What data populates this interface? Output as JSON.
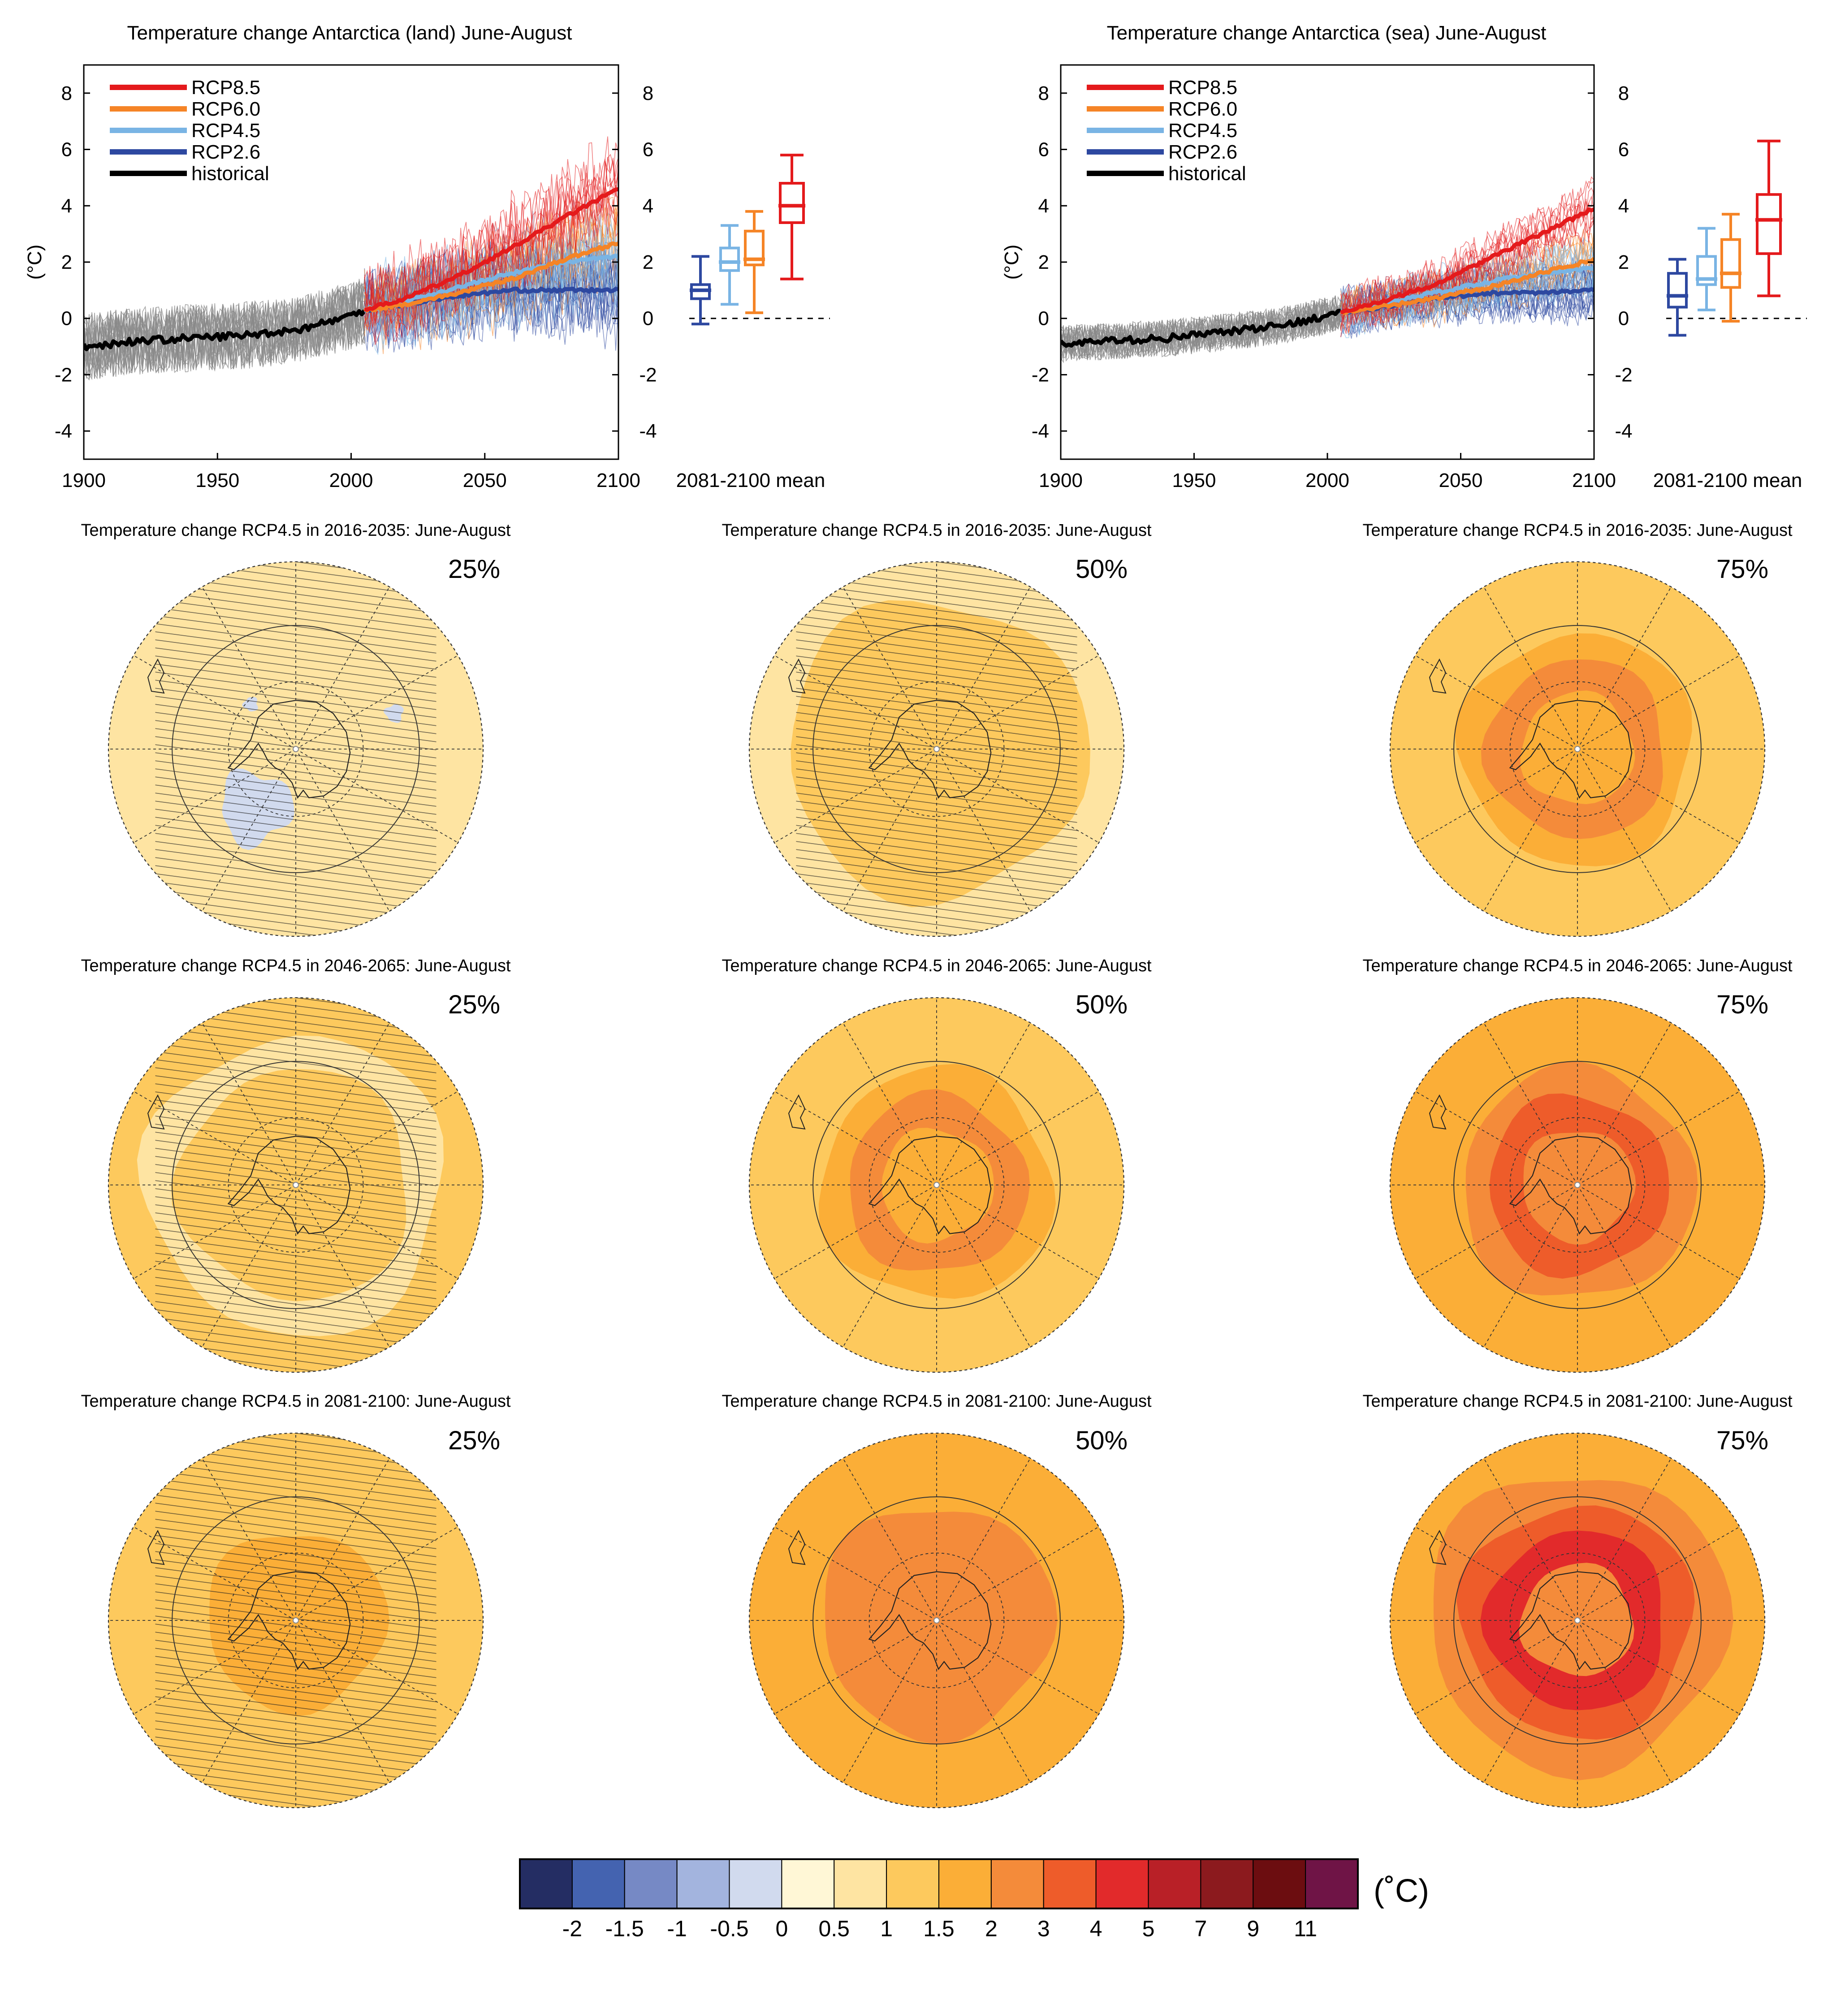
{
  "colors": {
    "rcp85": "#e41a1c",
    "rcp60": "#f58426",
    "rcp45": "#79b4e4",
    "rcp26": "#2d48a0",
    "historical": "#000000",
    "ensemble_gray": "#8a8a8a"
  },
  "chart_data": [
    {
      "type": "line",
      "title": "Temperature change Antarctica (land) June-August",
      "ylabel": "(°C)",
      "xlim": [
        1900,
        2100
      ],
      "ylim": [
        -5,
        9
      ],
      "x_ticks": [
        "1900",
        "1950",
        "2000",
        "2050",
        "2100"
      ],
      "y_ticks": [
        "8",
        "6",
        "4",
        "2",
        "0",
        "-2",
        "-4"
      ],
      "legend": [
        "RCP8.5",
        "RCP6.0",
        "RCP4.5",
        "RCP2.6",
        "historical"
      ],
      "legend_position": "top-left",
      "series": [
        {
          "name": "historical",
          "color": "#000000",
          "x": [
            1900,
            1920,
            1940,
            1960,
            1980,
            2000,
            2005
          ],
          "values": [
            -1.0,
            -0.8,
            -0.7,
            -0.6,
            -0.4,
            0.1,
            0.3
          ]
        },
        {
          "name": "RCP2.6",
          "color": "#2d48a0",
          "x": [
            2005,
            2020,
            2040,
            2060,
            2080,
            2100
          ],
          "values": [
            0.3,
            0.5,
            0.8,
            1.0,
            1.0,
            1.0
          ]
        },
        {
          "name": "RCP4.5",
          "color": "#79b4e4",
          "x": [
            2005,
            2020,
            2040,
            2060,
            2080,
            2100
          ],
          "values": [
            0.3,
            0.6,
            1.1,
            1.6,
            2.0,
            2.2
          ]
        },
        {
          "name": "RCP6.0",
          "color": "#f58426",
          "x": [
            2005,
            2020,
            2040,
            2060,
            2080,
            2100
          ],
          "values": [
            0.3,
            0.5,
            0.9,
            1.4,
            2.1,
            2.7
          ]
        },
        {
          "name": "RCP8.5",
          "color": "#e41a1c",
          "x": [
            2005,
            2020,
            2040,
            2060,
            2080,
            2100
          ],
          "values": [
            0.3,
            0.7,
            1.5,
            2.5,
            3.6,
            4.6
          ]
        }
      ],
      "mean_2081_2100": {
        "label": "2081-2100 mean",
        "boxes": [
          {
            "name": "RCP2.6",
            "color": "#2d48a0",
            "min": -0.2,
            "q1": 0.7,
            "median": 1.0,
            "q3": 1.2,
            "max": 2.2
          },
          {
            "name": "RCP4.5",
            "color": "#79b4e4",
            "min": 0.5,
            "q1": 1.7,
            "median": 2.0,
            "q3": 2.5,
            "max": 3.3
          },
          {
            "name": "RCP6.0",
            "color": "#f58426",
            "min": 0.2,
            "q1": 1.9,
            "median": 2.1,
            "q3": 3.1,
            "max": 3.8
          },
          {
            "name": "RCP8.5",
            "color": "#e41a1c",
            "min": 1.4,
            "q1": 3.4,
            "median": 4.0,
            "q3": 4.8,
            "max": 5.8
          }
        ]
      }
    },
    {
      "type": "line",
      "title": "Temperature change Antarctica (sea) June-August",
      "ylabel": "(°C)",
      "xlim": [
        1900,
        2100
      ],
      "ylim": [
        -5,
        9
      ],
      "x_ticks": [
        "1900",
        "1950",
        "2000",
        "2050",
        "2100"
      ],
      "y_ticks": [
        "8",
        "6",
        "4",
        "2",
        "0",
        "-2",
        "-4"
      ],
      "legend": [
        "RCP8.5",
        "RCP6.0",
        "RCP4.5",
        "RCP2.6",
        "historical"
      ],
      "legend_position": "top-left",
      "series": [
        {
          "name": "historical",
          "color": "#000000",
          "x": [
            1900,
            1920,
            1940,
            1960,
            1980,
            2000,
            2005
          ],
          "values": [
            -0.9,
            -0.8,
            -0.7,
            -0.5,
            -0.3,
            0.1,
            0.2
          ]
        },
        {
          "name": "RCP2.6",
          "color": "#2d48a0",
          "x": [
            2005,
            2020,
            2040,
            2060,
            2080,
            2100
          ],
          "values": [
            0.2,
            0.4,
            0.7,
            0.9,
            0.9,
            1.0
          ]
        },
        {
          "name": "RCP4.5",
          "color": "#79b4e4",
          "x": [
            2005,
            2020,
            2040,
            2060,
            2080,
            2100
          ],
          "values": [
            0.2,
            0.5,
            0.9,
            1.3,
            1.6,
            1.8
          ]
        },
        {
          "name": "RCP6.0",
          "color": "#f58426",
          "x": [
            2005,
            2020,
            2040,
            2060,
            2080,
            2100
          ],
          "values": [
            0.2,
            0.4,
            0.7,
            1.1,
            1.6,
            2.1
          ]
        },
        {
          "name": "RCP8.5",
          "color": "#e41a1c",
          "x": [
            2005,
            2020,
            2040,
            2060,
            2080,
            2100
          ],
          "values": [
            0.2,
            0.6,
            1.2,
            2.1,
            3.0,
            3.9
          ]
        }
      ],
      "mean_2081_2100": {
        "label": "2081-2100 mean",
        "boxes": [
          {
            "name": "RCP2.6",
            "color": "#2d48a0",
            "min": -0.6,
            "q1": 0.4,
            "median": 0.8,
            "q3": 1.6,
            "max": 2.1
          },
          {
            "name": "RCP4.5",
            "color": "#79b4e4",
            "min": 0.3,
            "q1": 1.2,
            "median": 1.4,
            "q3": 2.2,
            "max": 3.2
          },
          {
            "name": "RCP6.0",
            "color": "#f58426",
            "min": -0.1,
            "q1": 1.1,
            "median": 1.6,
            "q3": 2.8,
            "max": 3.7
          },
          {
            "name": "RCP8.5",
            "color": "#e41a1c",
            "min": 0.8,
            "q1": 2.3,
            "median": 3.5,
            "q3": 4.4,
            "max": 6.3
          }
        ]
      }
    },
    {
      "type": "heatmap",
      "title": "Temperature change RCP4.5 in 2016-2035: June-August",
      "maps": [
        {
          "percentile": "25%",
          "rings": [
            0.5,
            0.5,
            0.5,
            0.5,
            0.5
          ],
          "hatched": true,
          "blue_patches": true
        },
        {
          "percentile": "50%",
          "rings": [
            0.5,
            1.0,
            1.0,
            1.0,
            1.0
          ],
          "hatched": true,
          "blue_patches": false
        },
        {
          "percentile": "75%",
          "rings": [
            1.0,
            1.0,
            1.5,
            2.0,
            1.5
          ],
          "hatched": false,
          "blue_patches": false
        }
      ]
    },
    {
      "type": "heatmap",
      "title": "Temperature change RCP4.5 in 2046-2065: June-August",
      "maps": [
        {
          "percentile": "25%",
          "rings": [
            1.0,
            0.5,
            1.0,
            1.0,
            1.0
          ],
          "hatched": true,
          "blue_patches": false
        },
        {
          "percentile": "50%",
          "rings": [
            1.0,
            1.0,
            1.5,
            2.0,
            1.5
          ],
          "hatched": false,
          "blue_patches": false
        },
        {
          "percentile": "75%",
          "rings": [
            1.5,
            1.5,
            2.0,
            3.0,
            2.0
          ],
          "hatched": false,
          "blue_patches": false
        }
      ]
    },
    {
      "type": "heatmap",
      "title": "Temperature change RCP4.5 in 2081-2100: June-August",
      "maps": [
        {
          "percentile": "25%",
          "rings": [
            1.0,
            1.0,
            1.0,
            1.5,
            1.5
          ],
          "hatched": true,
          "blue_patches": false
        },
        {
          "percentile": "50%",
          "rings": [
            1.5,
            1.5,
            2.0,
            2.0,
            2.0
          ],
          "hatched": false,
          "blue_patches": false
        },
        {
          "percentile": "75%",
          "rings": [
            1.5,
            2.0,
            3.0,
            4.0,
            2.0
          ],
          "hatched": false,
          "blue_patches": false
        }
      ]
    }
  ],
  "colorbar": {
    "ticks": [
      "-2",
      "-1.5",
      "-1",
      "-0.5",
      "0",
      "0.5",
      "1",
      "1.5",
      "2",
      "3",
      "4",
      "5",
      "7",
      "9",
      "11"
    ],
    "bounds": [
      -2,
      -1.5,
      -1,
      -0.5,
      0,
      0.5,
      1,
      1.5,
      2,
      3,
      4,
      5,
      7,
      9,
      11
    ],
    "colors": [
      "#242d63",
      "#4463b0",
      "#7689c5",
      "#a3b4de",
      "#d1daee",
      "#fff7d6",
      "#fee4a2",
      "#fdc95d",
      "#fbae37",
      "#f48b3a",
      "#ee5c2a",
      "#e22a2b",
      "#b92027",
      "#8c1a1e",
      "#6c0d10",
      "#6f1446"
    ],
    "unit": "(˚C)"
  }
}
